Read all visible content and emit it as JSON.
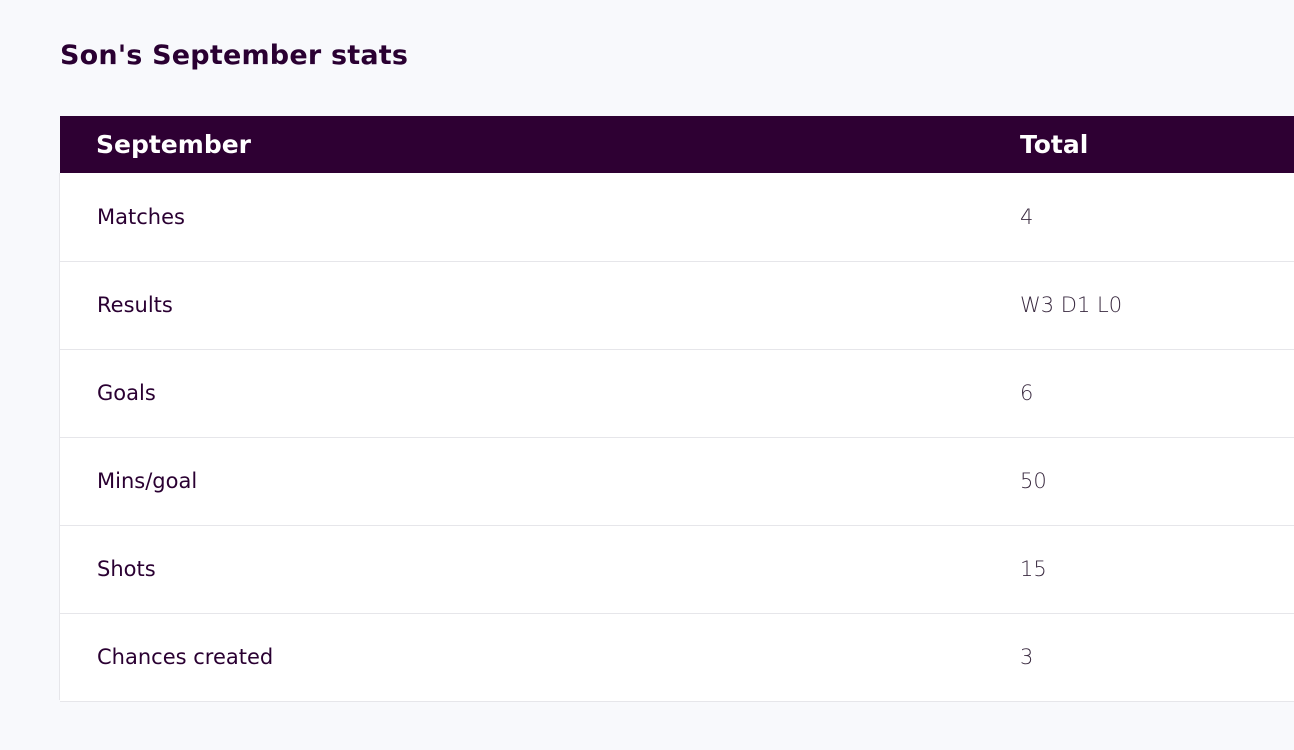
{
  "page": {
    "title": "Son's September stats"
  },
  "table": {
    "headers": {
      "label": "September",
      "total": "Total"
    },
    "rows": [
      {
        "label": "Matches",
        "value": "4"
      },
      {
        "label": "Results",
        "value": "W3 D1 L0"
      },
      {
        "label": "Goals",
        "value": "6"
      },
      {
        "label": "Mins/goal",
        "value": "50"
      },
      {
        "label": "Shots",
        "value": "15"
      },
      {
        "label": "Chances created",
        "value": "3"
      }
    ]
  },
  "colors": {
    "header_bg": "#2e0033",
    "header_text": "#ffffff",
    "title_text": "#2a0032",
    "page_bg": "#f8f9fc"
  }
}
